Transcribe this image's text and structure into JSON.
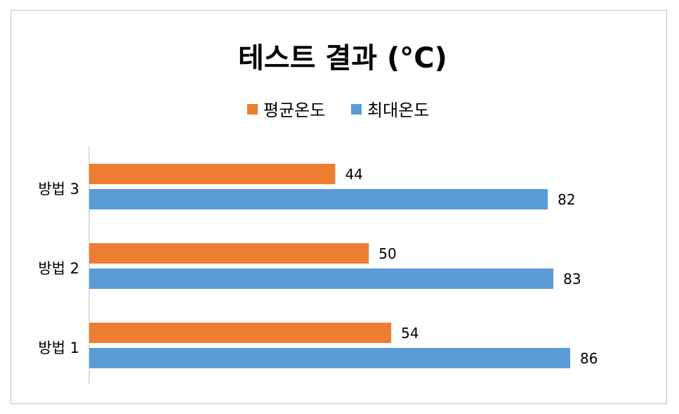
{
  "chart_data": {
    "type": "bar",
    "orientation": "horizontal",
    "title": "테스트 결과 (°C)",
    "categories": [
      "방법 1",
      "방법 2",
      "방법 3"
    ],
    "series": [
      {
        "name": "평균온도",
        "values": [
          54,
          50,
          44
        ],
        "color": "#ED7D31"
      },
      {
        "name": "최대온도",
        "values": [
          86,
          83,
          82
        ],
        "color": "#5B9BD5"
      }
    ],
    "xlim": [
      0,
      100
    ],
    "grid": false,
    "legend_position": "top",
    "data_labels": true
  }
}
